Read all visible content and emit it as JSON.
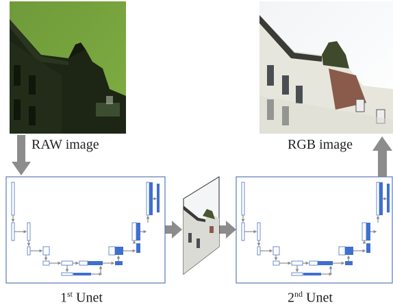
{
  "labels": {
    "raw_image": "RAW image",
    "rgb_image": "RGB image",
    "unet1_num": "1",
    "unet1_sup": "st",
    "unet1_word": " Unet",
    "unet2_num": "2",
    "unet2_sup": "nd",
    "unet2_word": " Unet"
  },
  "colors": {
    "box_border": "#5a79b8",
    "block_fill": "#3f6fcf",
    "block_outline": "#4472c4",
    "arrow_gray": "#8c8c8c"
  }
}
